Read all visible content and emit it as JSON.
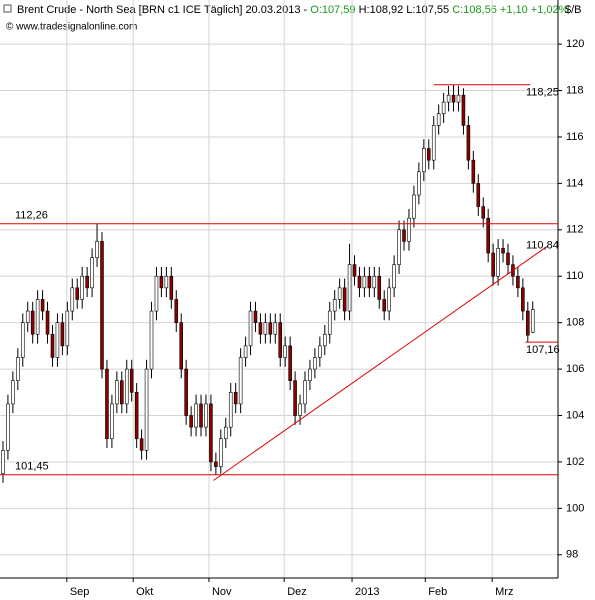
{
  "chart_data": {
    "type": "candlestick",
    "title": "Brent Crude - North Sea [BRN c1 ICE  Täglich] 20.03.2013 -",
    "quote": [
      {
        "text": "O:107,59",
        "color": "#1a9a1a"
      },
      {
        "text": "H:108,92 L:107,55",
        "color": "#000000"
      },
      {
        "text": "C:108,56 +1,10 +1,02%",
        "color": "#1a9a1a"
      }
    ],
    "source": "© www.tradesignalonline.com",
    "unit": "$/B",
    "up_color": "#ffffff",
    "down_color": "#8b0000",
    "line_color": "#e00000",
    "xlim": [
      -0.6,
      112.1
    ],
    "xticks": [
      {
        "value": 12.9,
        "label": "Sep"
      },
      {
        "value": 26.3,
        "label": "Okt"
      },
      {
        "value": 41.6,
        "label": "Nov"
      },
      {
        "value": 56.8,
        "label": "Dez"
      },
      {
        "value": 70.5,
        "label": "2013"
      },
      {
        "value": 85.3,
        "label": "Feb"
      },
      {
        "value": 98.8,
        "label": "Mrz"
      }
    ],
    "ylim": [
      97.0,
      121.9
    ],
    "yticks": [
      98,
      100,
      102,
      104,
      106,
      108,
      110,
      112,
      114,
      116,
      118,
      120
    ],
    "grid": true,
    "ohlc": [
      [
        101.5,
        102.9,
        101.1,
        102.5
      ],
      [
        102.5,
        104.9,
        102.1,
        104.5
      ],
      [
        104.5,
        105.9,
        104.1,
        105.5
      ],
      [
        105.5,
        106.9,
        105.1,
        106.5
      ],
      [
        106.5,
        108.4,
        106.1,
        108
      ],
      [
        108,
        108.9,
        107.6,
        108.5
      ],
      [
        108.5,
        108.9,
        107.1,
        107.5
      ],
      [
        107.5,
        109.4,
        107.1,
        109
      ],
      [
        109,
        109.4,
        108.1,
        108.5
      ],
      [
        108.5,
        108.9,
        107.1,
        107.5
      ],
      [
        107.5,
        107.9,
        106.1,
        106.5
      ],
      [
        106.5,
        108.4,
        106.1,
        108
      ],
      [
        108,
        108.4,
        106.6,
        107
      ],
      [
        107,
        108.9,
        106.6,
        108.5
      ],
      [
        108.5,
        109.9,
        108.1,
        109.5
      ],
      [
        109.5,
        109.9,
        108.6,
        109
      ],
      [
        109,
        110.4,
        108.6,
        110
      ],
      [
        110,
        110.4,
        109.1,
        109.5
      ],
      [
        109.5,
        111.2,
        109.1,
        110.8
      ],
      [
        110.8,
        112.26,
        110.4,
        111.5
      ],
      [
        111.5,
        111.9,
        105.6,
        106
      ],
      [
        106,
        106.4,
        102.6,
        103
      ],
      [
        103,
        104.9,
        102.6,
        104.5
      ],
      [
        104.5,
        105.9,
        104.1,
        105.5
      ],
      [
        105.5,
        105.9,
        104.1,
        104.5
      ],
      [
        104.5,
        106.4,
        104.1,
        106
      ],
      [
        106,
        106.4,
        104.6,
        105
      ],
      [
        105,
        105.4,
        102.6,
        103
      ],
      [
        103,
        103.4,
        102.1,
        102.5
      ],
      [
        102.5,
        106.4,
        102.1,
        106
      ],
      [
        106,
        108.9,
        105.6,
        108.5
      ],
      [
        108.5,
        110.4,
        108.1,
        110
      ],
      [
        110,
        110.4,
        109.1,
        109.5
      ],
      [
        109.5,
        110.4,
        109.1,
        110
      ],
      [
        110,
        110.4,
        108.6,
        109
      ],
      [
        109,
        109.4,
        107.6,
        108
      ],
      [
        108,
        108.4,
        105.6,
        106
      ],
      [
        106,
        106.4,
        103.6,
        104
      ],
      [
        104,
        104.4,
        103.1,
        103.5
      ],
      [
        103.5,
        104.9,
        103.1,
        104.5
      ],
      [
        104.5,
        104.9,
        103.1,
        103.5
      ],
      [
        103.5,
        104.9,
        103.1,
        104.5
      ],
      [
        104.5,
        104.9,
        101.6,
        102
      ],
      [
        102,
        102.4,
        101.45,
        101.8
      ],
      [
        101.8,
        103.4,
        101.5,
        103
      ],
      [
        103,
        103.9,
        102.6,
        103.5
      ],
      [
        103.5,
        105.4,
        103.1,
        105
      ],
      [
        105,
        105.4,
        104.1,
        104.5
      ],
      [
        104.5,
        106.9,
        104.1,
        106.5
      ],
      [
        106.5,
        107.4,
        106.1,
        107
      ],
      [
        107,
        108.9,
        106.6,
        108.5
      ],
      [
        108.5,
        108.9,
        107.6,
        108
      ],
      [
        108,
        108.4,
        107.1,
        107.5
      ],
      [
        107.5,
        108.4,
        107.1,
        108
      ],
      [
        108,
        108.4,
        107.1,
        107.5
      ],
      [
        107.5,
        108.4,
        107.1,
        108
      ],
      [
        108,
        108.4,
        106.1,
        106.5
      ],
      [
        106.5,
        107.4,
        106.1,
        107
      ],
      [
        107,
        107.4,
        105.1,
        105.5
      ],
      [
        105.5,
        105.9,
        103.6,
        104
      ],
      [
        104,
        104.9,
        103.6,
        104.5
      ],
      [
        104.5,
        105.9,
        104.1,
        105.5
      ],
      [
        105.5,
        106.4,
        105.1,
        106
      ],
      [
        106,
        106.9,
        105.6,
        106.5
      ],
      [
        106.5,
        107.4,
        106.1,
        107
      ],
      [
        107,
        107.9,
        106.6,
        107.5
      ],
      [
        107.5,
        108.9,
        107.1,
        108.5
      ],
      [
        108.5,
        109.4,
        108.1,
        109
      ],
      [
        109,
        109.9,
        108.6,
        109.5
      ],
      [
        109.5,
        109.9,
        108.1,
        108.5
      ],
      [
        108.5,
        111.4,
        108.1,
        110.5
      ],
      [
        110.5,
        110.9,
        109.6,
        110
      ],
      [
        110,
        110.4,
        109.1,
        109.5
      ],
      [
        109.5,
        110.4,
        109.1,
        110
      ],
      [
        110,
        110.4,
        109.1,
        109.5
      ],
      [
        109.5,
        110.4,
        109.1,
        110
      ],
      [
        110,
        110.4,
        108.6,
        109
      ],
      [
        109,
        109.4,
        108.1,
        108.5
      ],
      [
        108.5,
        109.9,
        108.1,
        109.5
      ],
      [
        109.5,
        110.9,
        109.1,
        110.5
      ],
      [
        110.5,
        112.4,
        110.1,
        112
      ],
      [
        112,
        112.4,
        111.1,
        111.5
      ],
      [
        111.5,
        112.9,
        111.1,
        112.5
      ],
      [
        112.5,
        113.9,
        112.1,
        113.5
      ],
      [
        113.5,
        114.9,
        113.1,
        114.5
      ],
      [
        114.5,
        115.9,
        114.1,
        115.5
      ],
      [
        115.5,
        115.9,
        114.6,
        115
      ],
      [
        115,
        116.9,
        114.6,
        116.5
      ],
      [
        116.5,
        117.4,
        116.1,
        117
      ],
      [
        117,
        117.9,
        116.6,
        117.5
      ],
      [
        117.5,
        118.2,
        117.1,
        117.8
      ],
      [
        117.8,
        118.25,
        117.1,
        117.5
      ],
      [
        117.5,
        118.2,
        117.1,
        117.8
      ],
      [
        117.8,
        118.1,
        116.1,
        116.5
      ],
      [
        116.5,
        116.9,
        114.6,
        115
      ],
      [
        115,
        115.4,
        113.6,
        114
      ],
      [
        114,
        114.4,
        112.6,
        113
      ],
      [
        113,
        113.4,
        112.1,
        112.5
      ],
      [
        112.5,
        112.9,
        110.6,
        111
      ],
      [
        111,
        111.4,
        109.6,
        110
      ],
      [
        110,
        111.6,
        109.6,
        111.2
      ],
      [
        111.2,
        111.6,
        110.6,
        111
      ],
      [
        111,
        111.4,
        110.1,
        110.5
      ],
      [
        110.5,
        110.9,
        109.6,
        110
      ],
      [
        110,
        110.4,
        109.1,
        109.5
      ],
      [
        109.5,
        109.9,
        108.1,
        108.5
      ],
      [
        108.5,
        108.9,
        107.16,
        107.46
      ],
      [
        107.59,
        108.92,
        107.55,
        108.56
      ]
    ],
    "levels": [
      {
        "value": 112.26,
        "label": "112,26"
      },
      {
        "value": 101.45,
        "label": "101,45"
      },
      {
        "value": 118.25,
        "label": "118,25",
        "start": 87,
        "end": 106.5
      },
      {
        "value": 107.16,
        "label": "107,16",
        "start": 105.5,
        "end": 112.1
      }
    ],
    "trendline": {
      "x": [
        42.5,
        110
      ],
      "y": [
        101.2,
        111.3
      ],
      "label": {
        "value": 110.84,
        "label": "110,84"
      }
    }
  }
}
